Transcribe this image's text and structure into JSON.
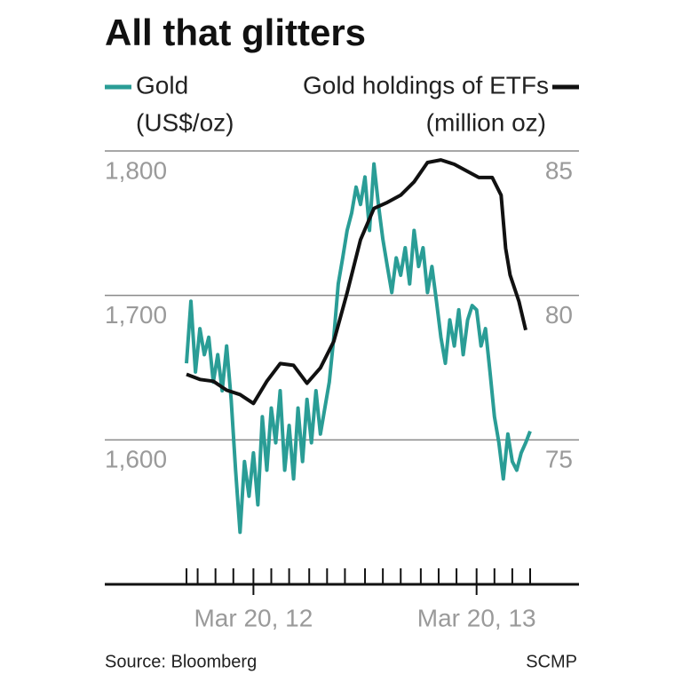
{
  "chart_data": {
    "type": "line",
    "title": "All that glitters",
    "y_label": "(US$/oz)",
    "y2_label": "(million oz)",
    "source": "Source: Bloomberg",
    "credit": "SCMP",
    "xlim": [
      2011.92,
      2013.46
    ],
    "xticks": [
      {
        "value": 2012.22,
        "label": "Mar 20, 12"
      },
      {
        "value": 2013.22,
        "label": "Mar 20, 13"
      }
    ],
    "xticks_minor": [
      2011.92,
      2011.97,
      2012.05,
      2012.13,
      2012.22,
      2012.3,
      2012.38,
      2012.47,
      2012.55,
      2012.63,
      2012.72,
      2012.8,
      2012.88,
      2012.97,
      2013.05,
      2013.13,
      2013.22,
      2013.3,
      2013.38,
      2013.46
    ],
    "ylim": [
      1500,
      1800
    ],
    "yticks": [
      {
        "value": 1600,
        "label": "1,600"
      },
      {
        "value": 1700,
        "label": "1,700"
      },
      {
        "value": 1800,
        "label": "1,800"
      }
    ],
    "y2lim": [
      70,
      85
    ],
    "y2ticks": [
      75,
      80,
      85
    ],
    "grid": true,
    "series": [
      {
        "name": "Gold",
        "color": "#2a9d96",
        "x": [
          2011.92,
          2011.94,
          2011.96,
          2011.98,
          2012.0,
          2012.02,
          2012.04,
          2012.06,
          2012.08,
          2012.1,
          2012.12,
          2012.14,
          2012.16,
          2012.18,
          2012.2,
          2012.22,
          2012.24,
          2012.26,
          2012.28,
          2012.3,
          2012.32,
          2012.34,
          2012.36,
          2012.38,
          2012.4,
          2012.42,
          2012.44,
          2012.46,
          2012.48,
          2012.5,
          2012.52,
          2012.54,
          2012.56,
          2012.58,
          2012.6,
          2012.62,
          2012.64,
          2012.66,
          2012.68,
          2012.7,
          2012.72,
          2012.74,
          2012.76,
          2012.78,
          2012.8,
          2012.82,
          2012.84,
          2012.86,
          2012.88,
          2012.9,
          2012.92,
          2012.94,
          2012.96,
          2012.98,
          2013.0,
          2013.02,
          2013.04,
          2013.06,
          2013.08,
          2013.1,
          2013.12,
          2013.14,
          2013.16,
          2013.18,
          2013.2,
          2013.22,
          2013.24,
          2013.26,
          2013.28,
          2013.3,
          2013.32,
          2013.34,
          2013.36,
          2013.38,
          2013.4,
          2013.42,
          2013.44,
          2013.46
        ],
        "values": [
          1653,
          1696,
          1647,
          1677,
          1659,
          1671,
          1640,
          1659,
          1634,
          1665,
          1628,
          1579,
          1536,
          1585,
          1561,
          1591,
          1555,
          1616,
          1579,
          1622,
          1598,
          1634,
          1579,
          1610,
          1573,
          1622,
          1585,
          1628,
          1598,
          1634,
          1604,
          1622,
          1640,
          1671,
          1708,
          1726,
          1745,
          1757,
          1775,
          1763,
          1782,
          1745,
          1791,
          1763,
          1739,
          1720,
          1702,
          1726,
          1714,
          1733,
          1708,
          1745,
          1720,
          1733,
          1702,
          1720,
          1696,
          1671,
          1653,
          1683,
          1665,
          1690,
          1659,
          1683,
          1693,
          1690,
          1665,
          1677,
          1647,
          1616,
          1598,
          1573,
          1604,
          1585,
          1579,
          1591,
          1598,
          1606
        ]
      },
      {
        "name": "Gold holdings of ETFs",
        "color": "#111111",
        "axis": "y2",
        "x": [
          2011.92,
          2011.98,
          2012.04,
          2012.1,
          2012.16,
          2012.22,
          2012.28,
          2012.34,
          2012.4,
          2012.46,
          2012.52,
          2012.58,
          2012.64,
          2012.7,
          2012.76,
          2012.82,
          2012.88,
          2012.94,
          2013.0,
          2013.06,
          2013.12,
          2013.17,
          2013.23,
          2013.29,
          2013.33,
          2013.35,
          2013.37,
          2013.41,
          2013.44
        ],
        "values": [
          77.27,
          77.09,
          77.03,
          76.72,
          76.57,
          76.26,
          77.03,
          77.64,
          77.58,
          76.96,
          77.49,
          78.41,
          80.09,
          81.93,
          83.01,
          83.22,
          83.47,
          83.93,
          84.6,
          84.69,
          84.54,
          84.33,
          84.08,
          84.08,
          83.47,
          81.63,
          80.71,
          79.79,
          78.8
        ]
      }
    ]
  }
}
